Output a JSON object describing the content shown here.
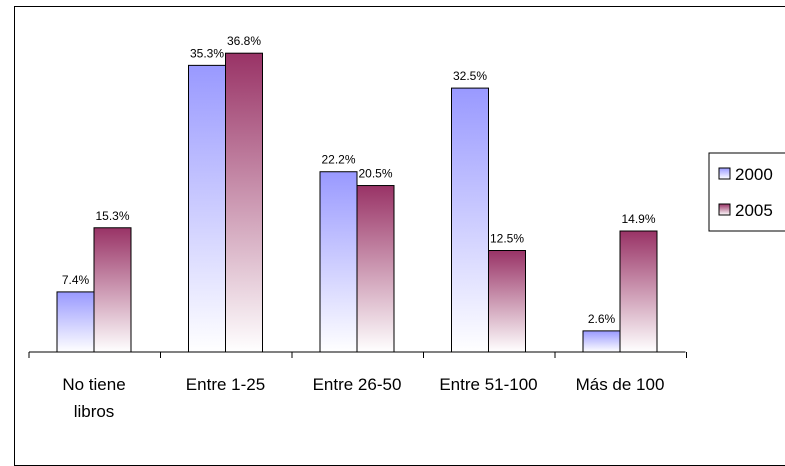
{
  "chart_data": {
    "type": "bar",
    "categories": [
      [
        "No tiene",
        "libros"
      ],
      [
        "Entre 1-25"
      ],
      [
        "Entre 26-50"
      ],
      [
        "Entre 51-100"
      ],
      [
        "Más de 100"
      ]
    ],
    "series": [
      {
        "name": "2000",
        "values": [
          7.4,
          35.3,
          22.2,
          32.5,
          2.6
        ],
        "labels": [
          "7.4%",
          "35.3%",
          "22.2%",
          "32.5%",
          "2.6%"
        ],
        "color": "#9999ff"
      },
      {
        "name": "2005",
        "values": [
          15.3,
          36.8,
          20.5,
          12.5,
          14.9
        ],
        "labels": [
          "15.3%",
          "36.8%",
          "20.5%",
          "12.5%",
          "14.9%"
        ],
        "color": "#993366"
      }
    ],
    "ylim": [
      0,
      40
    ],
    "legend": "right",
    "grid": false
  }
}
